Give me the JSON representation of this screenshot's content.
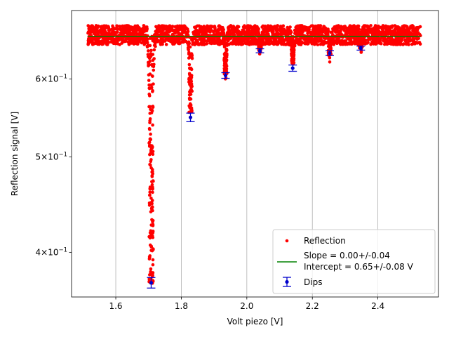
{
  "chart_data": {
    "type": "scatter",
    "title": "",
    "xlabel": "Volt piezo [V]",
    "ylabel": "Reflection signal [V]",
    "xlim": [
      1.465,
      2.585
    ],
    "ylim": [
      0.3603,
      0.7043
    ],
    "yscale": "log",
    "grid": "vertical-major",
    "legend_position": "lower-right",
    "xticks": [
      1.6,
      1.8,
      2.0,
      2.2,
      2.4
    ],
    "xtick_labels": [
      "1.6",
      "1.8",
      "2.0",
      "2.2",
      "2.4"
    ],
    "yticks": [
      0.4,
      0.5,
      0.6
    ],
    "ytick_labels": [
      {
        "base": "4",
        "mult": "×",
        "exp_base": "10",
        "exp": "−1"
      },
      {
        "base": "5",
        "mult": "×",
        "exp_base": "10",
        "exp": "−1"
      },
      {
        "base": "6",
        "mult": "×",
        "exp_base": "10",
        "exp": "−1"
      }
    ],
    "colors": {
      "reflection": "#ff0000",
      "fit": "#008000",
      "dips": "#0000cc"
    },
    "series": [
      {
        "name": "Reflection",
        "kind": "scatter",
        "x_range": [
          1.515,
          2.53
        ],
        "baseline": 0.663,
        "noise_band": [
          0.645,
          0.68
        ],
        "dips": [
          {
            "x": 1.708,
            "min": 0.372,
            "width": 0.009
          },
          {
            "x": 1.828,
            "min": 0.555,
            "width": 0.007
          },
          {
            "x": 1.935,
            "min": 0.607,
            "width": 0.006
          },
          {
            "x": 2.04,
            "min": 0.642,
            "width": 0.006
          },
          {
            "x": 2.14,
            "min": 0.622,
            "width": 0.006
          },
          {
            "x": 2.253,
            "min": 0.634,
            "width": 0.006
          },
          {
            "x": 2.348,
            "min": 0.646,
            "width": 0.006
          }
        ]
      },
      {
        "name": "Slope = 0.00+/-0.04",
        "name_line2": "Intercept = 0.65+/-0.08 V",
        "kind": "line",
        "x": [
          1.515,
          2.53
        ],
        "y": [
          0.663,
          0.663
        ]
      },
      {
        "name": "Dips",
        "kind": "errorbar",
        "points": [
          {
            "x": 1.708,
            "y": 0.3725,
            "err": 0.0046
          },
          {
            "x": 1.828,
            "y": 0.5485,
            "err": 0.0055
          },
          {
            "x": 1.935,
            "y": 0.605,
            "err": 0.004
          },
          {
            "x": 2.04,
            "y": 0.641,
            "err": 0.003
          },
          {
            "x": 2.14,
            "y": 0.6155,
            "err": 0.0045
          },
          {
            "x": 2.253,
            "y": 0.6375,
            "err": 0.0035
          },
          {
            "x": 2.348,
            "y": 0.645,
            "err": 0.003
          }
        ]
      }
    ]
  }
}
